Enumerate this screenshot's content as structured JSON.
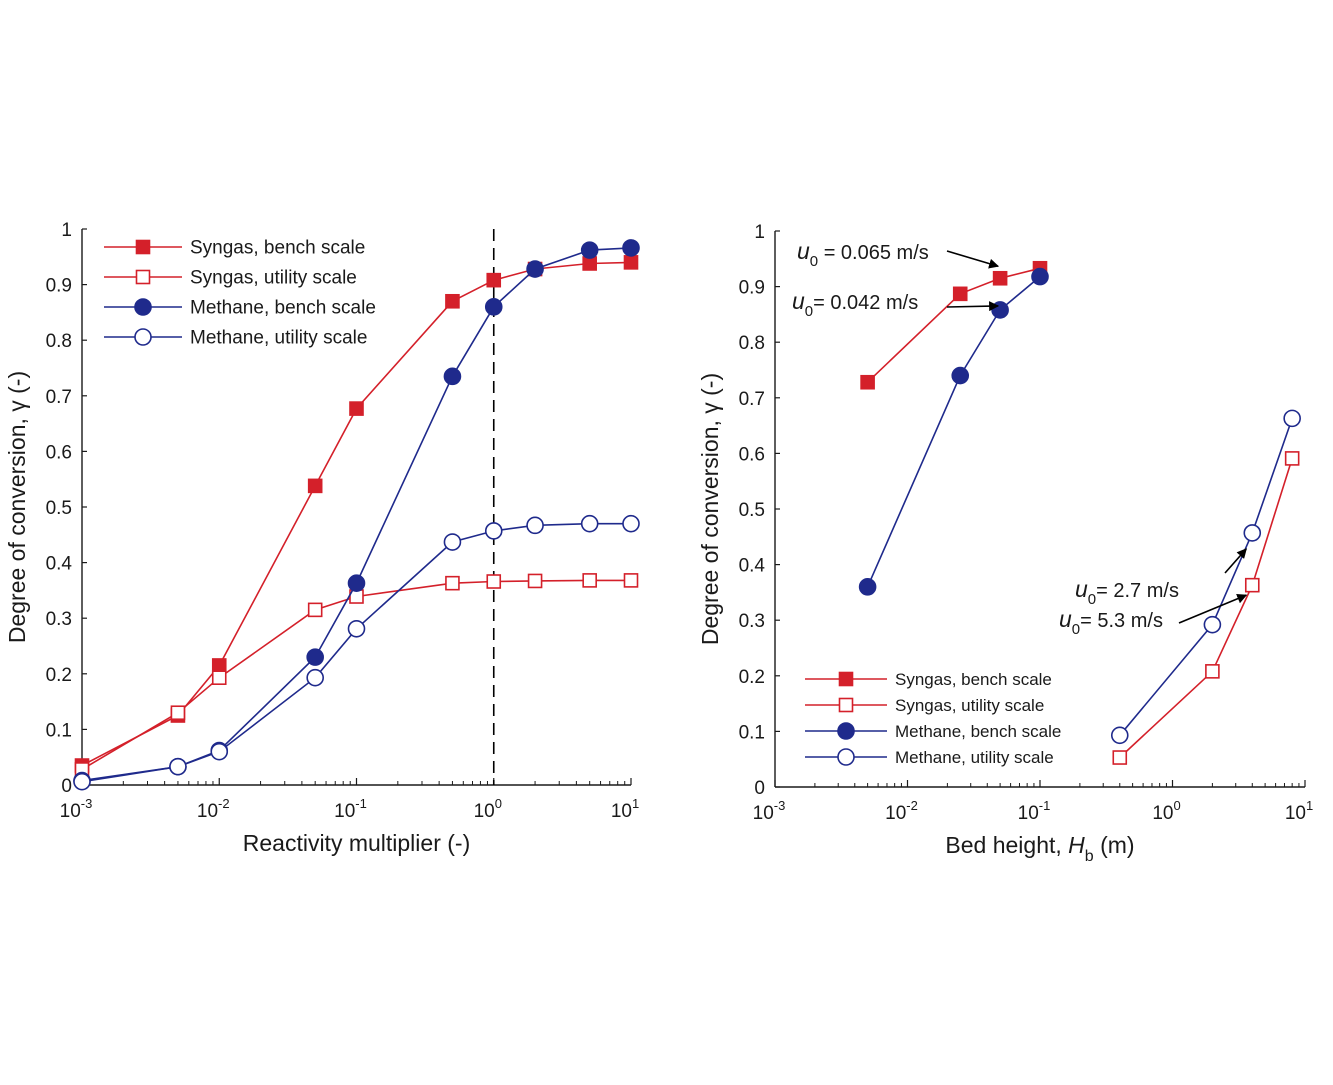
{
  "colors": {
    "red": "#d4202a",
    "blue": "#1f2a8c",
    "axis": "#1a1a1a"
  },
  "chart_data": [
    {
      "type": "line",
      "xscale": "log",
      "xlim": [
        0.001,
        10
      ],
      "ylim": [
        0,
        1
      ],
      "xticks": [
        {
          "value": 0.001,
          "base": "10",
          "exp": "-3"
        },
        {
          "value": 0.01,
          "base": "10",
          "exp": "-2"
        },
        {
          "value": 0.1,
          "base": "10",
          "exp": "-1"
        },
        {
          "value": 1,
          "base": "10",
          "exp": "0"
        },
        {
          "value": 10,
          "base": "10",
          "exp": "1"
        }
      ],
      "yticks": [
        {
          "value": 0,
          "label": "0"
        },
        {
          "value": 0.1,
          "label": "0.1"
        },
        {
          "value": 0.2,
          "label": "0.2"
        },
        {
          "value": 0.3,
          "label": "0.3"
        },
        {
          "value": 0.4,
          "label": "0.4"
        },
        {
          "value": 0.5,
          "label": "0.5"
        },
        {
          "value": 0.6,
          "label": "0.6"
        },
        {
          "value": 0.7,
          "label": "0.7"
        },
        {
          "value": 0.8,
          "label": "0.8"
        },
        {
          "value": 0.9,
          "label": "0.9"
        },
        {
          "value": 1,
          "label": "1"
        }
      ],
      "xlabel": "Reactivity multiplier (-)",
      "ylabel": "Degree of conversion, γ (-)",
      "vline_x": 1,
      "legend_position": "top-left",
      "series": [
        {
          "name": "Syngas, bench scale",
          "color": "red",
          "marker": "square",
          "filled": true,
          "x": [
            0.001,
            0.005,
            0.01,
            0.05,
            0.1,
            0.5,
            1,
            2,
            5,
            10
          ],
          "y": [
            0.035,
            0.125,
            0.215,
            0.538,
            0.677,
            0.87,
            0.908,
            0.928,
            0.938,
            0.94
          ]
        },
        {
          "name": "Syngas, utility scale",
          "color": "red",
          "marker": "square",
          "filled": false,
          "x": [
            0.001,
            0.005,
            0.01,
            0.05,
            0.1,
            0.5,
            1,
            2,
            5,
            10
          ],
          "y": [
            0.028,
            0.13,
            0.193,
            0.315,
            0.339,
            0.363,
            0.366,
            0.367,
            0.368,
            0.368
          ]
        },
        {
          "name": "Methane, bench scale",
          "color": "blue",
          "marker": "circle",
          "filled": true,
          "x": [
            0.001,
            0.005,
            0.01,
            0.05,
            0.1,
            0.5,
            1,
            2,
            5,
            10
          ],
          "y": [
            0.008,
            0.033,
            0.062,
            0.23,
            0.363,
            0.735,
            0.86,
            0.928,
            0.962,
            0.966
          ]
        },
        {
          "name": "Methane, utility scale",
          "color": "blue",
          "marker": "circle",
          "filled": false,
          "x": [
            0.001,
            0.005,
            0.01,
            0.05,
            0.1,
            0.5,
            1,
            2,
            5,
            10
          ],
          "y": [
            0.006,
            0.033,
            0.06,
            0.193,
            0.281,
            0.437,
            0.457,
            0.467,
            0.47,
            0.47
          ]
        }
      ],
      "annotations": []
    },
    {
      "type": "line",
      "xscale": "log",
      "xlim": [
        0.001,
        10
      ],
      "ylim": [
        0,
        1
      ],
      "xticks": [
        {
          "value": 0.001,
          "base": "10",
          "exp": "-3"
        },
        {
          "value": 0.01,
          "base": "10",
          "exp": "-2"
        },
        {
          "value": 0.1,
          "base": "10",
          "exp": "-1"
        },
        {
          "value": 1,
          "base": "10",
          "exp": "0"
        },
        {
          "value": 10,
          "base": "10",
          "exp": "1"
        }
      ],
      "yticks": [
        {
          "value": 0,
          "label": "0"
        },
        {
          "value": 0.1,
          "label": "0.1"
        },
        {
          "value": 0.2,
          "label": "0.2"
        },
        {
          "value": 0.3,
          "label": "0.3"
        },
        {
          "value": 0.4,
          "label": "0.4"
        },
        {
          "value": 0.5,
          "label": "0.5"
        },
        {
          "value": 0.6,
          "label": "0.6"
        },
        {
          "value": 0.7,
          "label": "0.7"
        },
        {
          "value": 0.8,
          "label": "0.8"
        },
        {
          "value": 0.9,
          "label": "0.9"
        },
        {
          "value": 1,
          "label": "1"
        }
      ],
      "xlabel": "Bed height, H_b (m)",
      "xlabel_prefix": "Bed height, ",
      "xlabel_var": "H",
      "xlabel_sub": "b",
      "xlabel_suffix": " (m)",
      "ylabel": "Degree of conversion, γ (-)",
      "legend_position": "bottom-left",
      "series": [
        {
          "name": "Syngas, bench scale",
          "color": "red",
          "marker": "square",
          "filled": true,
          "x": [
            0.005,
            0.025,
            0.05,
            0.1
          ],
          "y": [
            0.728,
            0.887,
            0.915,
            0.933
          ]
        },
        {
          "name": "Syngas, utility scale",
          "color": "red",
          "marker": "square",
          "filled": false,
          "x": [
            0.4,
            2,
            4,
            8
          ],
          "y": [
            0.053,
            0.208,
            0.363,
            0.591
          ]
        },
        {
          "name": "Methane, bench scale",
          "color": "blue",
          "marker": "circle",
          "filled": true,
          "x": [
            0.005,
            0.025,
            0.05,
            0.1
          ],
          "y": [
            0.36,
            0.74,
            0.858,
            0.918
          ]
        },
        {
          "name": "Methane, utility scale",
          "color": "blue",
          "marker": "circle",
          "filled": false,
          "x": [
            0.4,
            2,
            4,
            8
          ],
          "y": [
            0.093,
            0.292,
            0.457,
            0.663
          ]
        }
      ],
      "annotations": [
        {
          "var": "u",
          "sub": "0",
          "text": " = 0.065 m/s",
          "target_x": 0.05,
          "target_y": 0.915
        },
        {
          "var": "u",
          "sub": "0",
          "text": "= 0.042 m/s",
          "target_x": 0.05,
          "target_y": 0.858
        },
        {
          "var": "u",
          "sub": "0",
          "text": "= 2.7 m/s",
          "target_x": 4,
          "target_y": 0.457
        },
        {
          "var": "u",
          "sub": "0",
          "text": "= 5.3 m/s",
          "target_x": 4,
          "target_y": 0.363
        }
      ]
    }
  ]
}
